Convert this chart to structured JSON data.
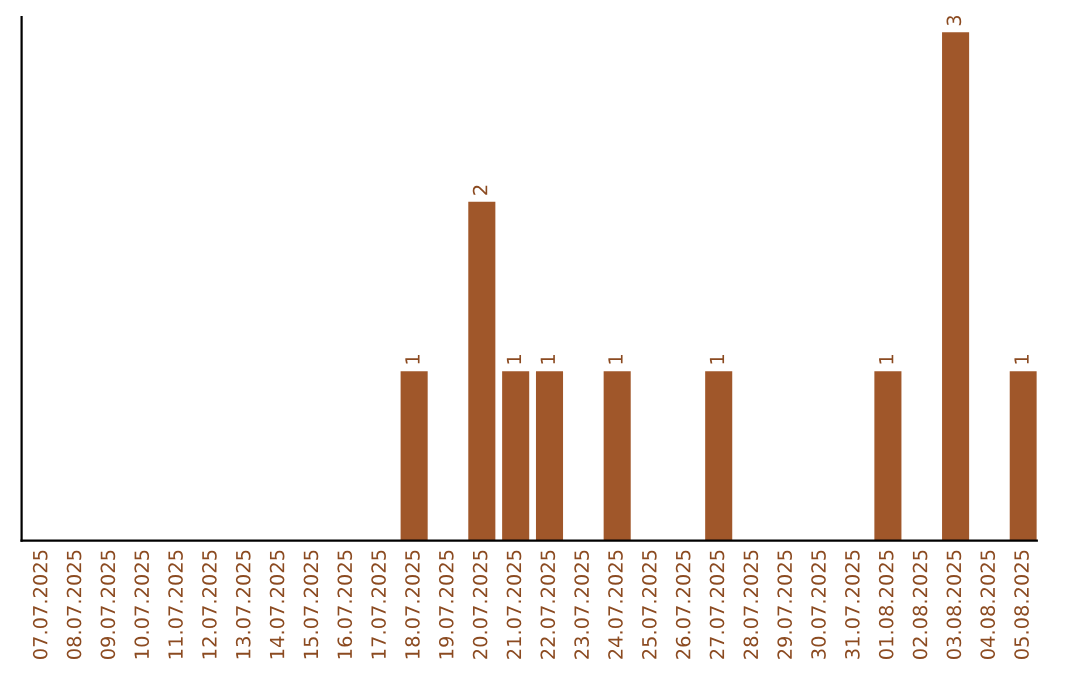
{
  "chart_data": {
    "type": "bar",
    "categories": [
      "07.07.2025",
      "08.07.2025",
      "09.07.2025",
      "10.07.2025",
      "11.07.2025",
      "12.07.2025",
      "13.07.2025",
      "14.07.2025",
      "15.07.2025",
      "16.07.2025",
      "17.07.2025",
      "18.07.2025",
      "19.07.2025",
      "20.07.2025",
      "21.07.2025",
      "22.07.2025",
      "23.07.2025",
      "24.07.2025",
      "25.07.2025",
      "26.07.2025",
      "27.07.2025",
      "28.07.2025",
      "29.07.2025",
      "30.07.2025",
      "31.07.2025",
      "01.08.2025",
      "02.08.2025",
      "03.08.2025",
      "04.08.2025",
      "05.08.2025"
    ],
    "values": [
      0,
      0,
      0,
      0,
      0,
      0,
      0,
      0,
      0,
      0,
      0,
      1,
      0,
      2,
      1,
      1,
      0,
      1,
      0,
      0,
      1,
      0,
      0,
      0,
      0,
      1,
      0,
      3,
      0,
      1
    ],
    "value_labels": [
      null,
      null,
      null,
      null,
      null,
      null,
      null,
      null,
      null,
      null,
      null,
      "1",
      null,
      "2",
      "1",
      "1",
      null,
      "1",
      null,
      null,
      "1",
      null,
      null,
      null,
      null,
      "1",
      null,
      "3",
      null,
      "1"
    ],
    "color": "#a0572a",
    "tick_labels": "x",
    "grid": false,
    "legend": false
  }
}
